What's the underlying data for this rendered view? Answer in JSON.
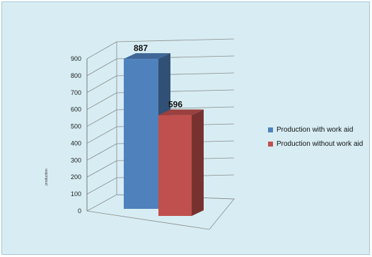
{
  "chart_data": {
    "type": "bar",
    "style": "3d-column",
    "categories": [
      ""
    ],
    "series": [
      {
        "name": "Production with work aid",
        "values": [
          887
        ],
        "color": "#4f81bd"
      },
      {
        "name": "Production without work aid",
        "values": [
          596
        ],
        "color": "#c0504d"
      }
    ],
    "title": "",
    "xlabel": "",
    "ylabel": "production",
    "ylim": [
      0,
      900
    ],
    "yticks": [
      0,
      100,
      200,
      300,
      400,
      500,
      600,
      700,
      800,
      900
    ],
    "data_labels": [
      "887",
      "596"
    ],
    "grid": true,
    "legend_position": "right",
    "background_color": "#d7edf3"
  }
}
